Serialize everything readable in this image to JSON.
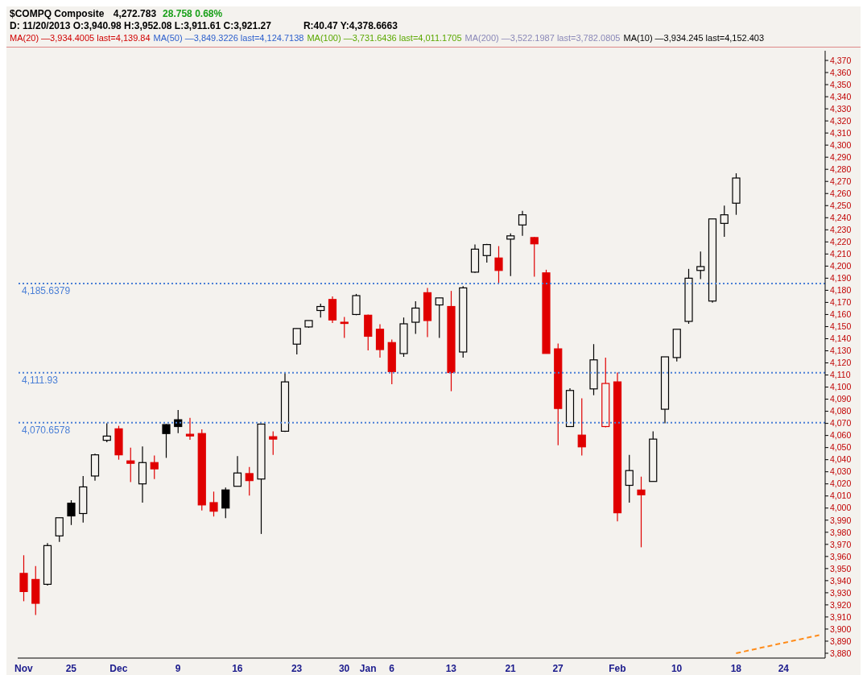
{
  "chart_data": {
    "type": "candlestick",
    "title": "$COMPQ Composite",
    "subtitle": "4,272.783",
    "annotations": [
      "28.758 0.68%",
      "D: 11/20/2013 O:3,940.98 H:3,952.08 L:3,911.61 C:3,921.27",
      "R:40.47 Y:4,378.6663",
      "MA(20) —3,934.4005 last=4,139.84",
      "MA(50) —3,849.3226 last=4,124.7138",
      "MA(100) —3,731.6436 last=4,011.1705",
      "MA(200) —3,522.1987 last=3,782.0805",
      "MA(10) —3,934.245 last=4,152.403"
    ],
    "categories": [
      "Nov",
      null,
      null,
      null,
      "25",
      null,
      null,
      null,
      "Dec",
      null,
      null,
      null,
      null,
      "9",
      null,
      null,
      null,
      null,
      "16",
      null,
      null,
      null,
      null,
      "23",
      null,
      null,
      null,
      "30",
      null,
      "Jan",
      null,
      "6",
      null,
      null,
      null,
      null,
      "13",
      null,
      null,
      null,
      null,
      "21",
      null,
      null,
      null,
      "27",
      null,
      null,
      null,
      null,
      "Feb",
      null,
      null,
      null,
      null,
      "10",
      null,
      null,
      null,
      null,
      "18",
      null,
      null,
      null,
      "24",
      null,
      null,
      null
    ],
    "ohlc": [
      [
        3946,
        3961,
        3923,
        3931
      ],
      [
        3940.98,
        3952.08,
        3911.61,
        3921.27
      ],
      [
        3937,
        3971,
        3936,
        3969
      ],
      [
        3977,
        3992,
        3972,
        3992
      ],
      [
        4004,
        4006.5,
        3986,
        3993.5
      ],
      [
        3995.5,
        4026.5,
        3988,
        4017.5
      ],
      [
        4026.5,
        4045,
        4022.7,
        4044
      ],
      [
        4056,
        4070,
        4054.5,
        4059.5
      ],
      [
        4065.5,
        4068,
        4040,
        4044
      ],
      [
        4039,
        4050,
        4021.4,
        4037
      ],
      [
        4020,
        4051,
        4004.5,
        4037.6
      ],
      [
        4037.6,
        4043.4,
        4024,
        4032.4
      ],
      [
        4069,
        4069.4,
        4041.5,
        4061.6
      ],
      [
        4073,
        4081,
        4062,
        4067.4
      ],
      [
        4061,
        4074.5,
        4056.4,
        4059.6
      ],
      [
        4061.6,
        4065,
        3998,
        4002.6
      ],
      [
        4004.5,
        4013.6,
        3993,
        3997.4
      ],
      [
        4015,
        4017,
        3991.6,
        4000
      ],
      [
        4018,
        4043,
        4018,
        4029
      ],
      [
        4028.5,
        4034,
        4010.4,
        4022.7
      ],
      [
        4024,
        4069.4,
        3978.6,
        4069.4
      ],
      [
        4059,
        4063.5,
        4044,
        4057
      ],
      [
        4063.5,
        4111.9,
        4063,
        4104.3
      ],
      [
        4135.5,
        4148.4,
        4127,
        4148.4
      ],
      [
        4149.7,
        4155,
        4149,
        4155
      ],
      [
        4163.3,
        4169,
        4157.5,
        4166.6
      ],
      [
        4172.4,
        4175,
        4153,
        4155.5
      ],
      [
        4153.6,
        4158,
        4140.6,
        4153
      ],
      [
        4160,
        4177,
        4159.4,
        4175.6
      ],
      [
        4159.4,
        4160,
        4130.3,
        4142
      ],
      [
        4147.8,
        4152,
        4124.4,
        4131
      ],
      [
        4136.8,
        4139.3,
        4102.4,
        4112.8
      ],
      [
        4127.7,
        4157.5,
        4125,
        4152.3
      ],
      [
        4153.6,
        4171,
        4144,
        4165.3
      ],
      [
        4178,
        4182,
        4141.3,
        4155
      ],
      [
        4167.9,
        4173.7,
        4140.6,
        4173.7
      ],
      [
        4166.6,
        4179.5,
        4096.6,
        4112
      ],
      [
        4129,
        4183.4,
        4124.4,
        4182
      ],
      [
        4195,
        4217.8,
        4194.4,
        4214
      ],
      [
        4208.7,
        4218.4,
        4202.9,
        4217.8
      ],
      [
        4206.7,
        4216.5,
        4186,
        4196.4
      ],
      [
        4222.3,
        4227,
        4191.8,
        4225
      ],
      [
        4234,
        4245.6,
        4225,
        4242.4
      ],
      [
        4223.6,
        4224,
        4191.2,
        4218.4
      ],
      [
        4194.4,
        4197,
        4127.7,
        4127.8
      ],
      [
        4131.6,
        4136,
        4052,
        4082.3
      ],
      [
        4067.4,
        4099,
        4067.4,
        4097.2
      ],
      [
        4060.3,
        4090.7,
        4043.4,
        4050.6
      ],
      [
        4098.5,
        4135.5,
        4093.3,
        4122.5
      ],
      [
        4067.4,
        4124.4,
        4066.8,
        4103
      ],
      [
        4104.3,
        4112,
        3989,
        3996.1
      ],
      [
        4018.8,
        4044,
        4004.5,
        4031
      ],
      [
        4014.9,
        4026,
        3967.6,
        4011
      ],
      [
        4022,
        4063.5,
        4022,
        4057
      ],
      [
        4081.7,
        4125,
        4070,
        4125
      ],
      [
        4124.4,
        4147.8,
        4121.2,
        4147.8
      ],
      [
        4154.3,
        4197.7,
        4152.3,
        4190
      ],
      [
        4196.4,
        4212,
        4189.3,
        4199.6
      ],
      [
        4171.1,
        4239,
        4169.8,
        4239
      ],
      [
        4235.3,
        4250,
        4224.2,
        4242.4
      ],
      [
        4252,
        4276.7,
        4242.4,
        4272.8
      ],
      null,
      null,
      null,
      null,
      null,
      null,
      null
    ],
    "colors": [
      "#e00000",
      "#e00000",
      "#000000",
      "#000000",
      "#000000",
      "#000000",
      "#000000",
      "#000000",
      "#e00000",
      "#e00000",
      "#000000",
      "#e00000",
      "#000000",
      "#000000",
      "#e00000",
      "#e00000",
      "#e00000",
      "#000000",
      "#000000",
      "#e00000",
      "#000000",
      "#e00000",
      "#000000",
      "#000000",
      "#000000",
      "#000000",
      "#e00000",
      "#e00000",
      "#000000",
      "#e00000",
      "#e00000",
      "#e00000",
      "#000000",
      "#000000",
      "#e00000",
      "#000000",
      "#e00000",
      "#000000",
      "#000000",
      "#000000",
      "#e00000",
      "#000000",
      "#000000",
      "#e00000",
      "#e00000",
      "#e00000",
      "#000000",
      "#e00000",
      "#000000",
      "#e00000",
      "#e00000",
      "#000000",
      "#e00000",
      "#000000",
      "#000000",
      "#000000",
      "#000000",
      "#000000",
      "#000000",
      "#000000",
      "#000000",
      null,
      null,
      null,
      null,
      null,
      null,
      null
    ],
    "series": [
      {
        "type": "line",
        "color": "#ff8c1a",
        "line_style": "dashed",
        "values": [
          null,
          null,
          null,
          null,
          null,
          null,
          null,
          null,
          null,
          null,
          null,
          null,
          null,
          null,
          null,
          null,
          null,
          null,
          null,
          null,
          null,
          null,
          null,
          null,
          null,
          null,
          null,
          null,
          null,
          null,
          null,
          null,
          null,
          null,
          null,
          null,
          null,
          null,
          null,
          null,
          null,
          null,
          null,
          null,
          null,
          null,
          null,
          null,
          null,
          null,
          null,
          null,
          null,
          null,
          null,
          null,
          null,
          null,
          null,
          null,
          3880,
          null,
          null,
          null,
          null,
          null,
          null,
          3895
        ]
      }
    ],
    "ref_lines": [
      {
        "axis": "y",
        "value": 4070.6578,
        "label": "4,070.6578",
        "color": "#4a7fd6",
        "line_style": "dotted"
      },
      {
        "axis": "y",
        "value": 4111.93,
        "label": "4,111.93",
        "color": "#4a7fd6",
        "line_style": "dotted"
      },
      {
        "axis": "y",
        "value": 4185.6379,
        "label": "4,185.6379",
        "color": "#4a7fd6",
        "line_style": "dotted"
      }
    ],
    "ylim": [
      3876,
      4378
    ],
    "yticks": [
      {
        "value": 3880,
        "label": "3,880"
      },
      {
        "value": 3890,
        "label": "3,890"
      },
      {
        "value": 3900,
        "label": "3,900"
      },
      {
        "value": 3910,
        "label": "3,910"
      },
      {
        "value": 3920,
        "label": "3,920"
      },
      {
        "value": 3930,
        "label": "3,930"
      },
      {
        "value": 3940,
        "label": "3,940"
      },
      {
        "value": 3950,
        "label": "3,950"
      },
      {
        "value": 3960,
        "label": "3,960"
      },
      {
        "value": 3970,
        "label": "3,970"
      },
      {
        "value": 3980,
        "label": "3,980"
      },
      {
        "value": 3990,
        "label": "3,990"
      },
      {
        "value": 4000,
        "label": "4,000"
      },
      {
        "value": 4010,
        "label": "4,010"
      },
      {
        "value": 4020,
        "label": "4,020"
      },
      {
        "value": 4030,
        "label": "4,030"
      },
      {
        "value": 4040,
        "label": "4,040"
      },
      {
        "value": 4050,
        "label": "4,050"
      },
      {
        "value": 4060,
        "label": "4,060"
      },
      {
        "value": 4070,
        "label": "4,070"
      },
      {
        "value": 4080,
        "label": "4,080"
      },
      {
        "value": 4090,
        "label": "4,090"
      },
      {
        "value": 4100,
        "label": "4,100"
      },
      {
        "value": 4110,
        "label": "4,110"
      },
      {
        "value": 4120,
        "label": "4,120"
      },
      {
        "value": 4130,
        "label": "4,130"
      },
      {
        "value": 4140,
        "label": "4,140"
      },
      {
        "value": 4150,
        "label": "4,150"
      },
      {
        "value": 4160,
        "label": "4,160"
      },
      {
        "value": 4170,
        "label": "4,170"
      },
      {
        "value": 4180,
        "label": "4,180"
      },
      {
        "value": 4190,
        "label": "4,190"
      },
      {
        "value": 4200,
        "label": "4,200"
      },
      {
        "value": 4210,
        "label": "4,210"
      },
      {
        "value": 4220,
        "label": "4,220"
      },
      {
        "value": 4230,
        "label": "4,230"
      },
      {
        "value": 4240,
        "label": "4,240"
      },
      {
        "value": 4250,
        "label": "4,250"
      },
      {
        "value": 4260,
        "label": "4,260"
      },
      {
        "value": 4270,
        "label": "4,270"
      },
      {
        "value": 4280,
        "label": "4,280"
      },
      {
        "value": 4290,
        "label": "4,290"
      },
      {
        "value": 4300,
        "label": "4,300"
      },
      {
        "value": 4310,
        "label": "4,310"
      },
      {
        "value": 4320,
        "label": "4,320"
      },
      {
        "value": 4330,
        "label": "4,330"
      },
      {
        "value": 4340,
        "label": "4,340"
      },
      {
        "value": 4350,
        "label": "4,350"
      },
      {
        "value": 4360,
        "label": "4,360"
      },
      {
        "value": 4370,
        "label": "4,370"
      }
    ],
    "grid": false,
    "legend": false
  }
}
